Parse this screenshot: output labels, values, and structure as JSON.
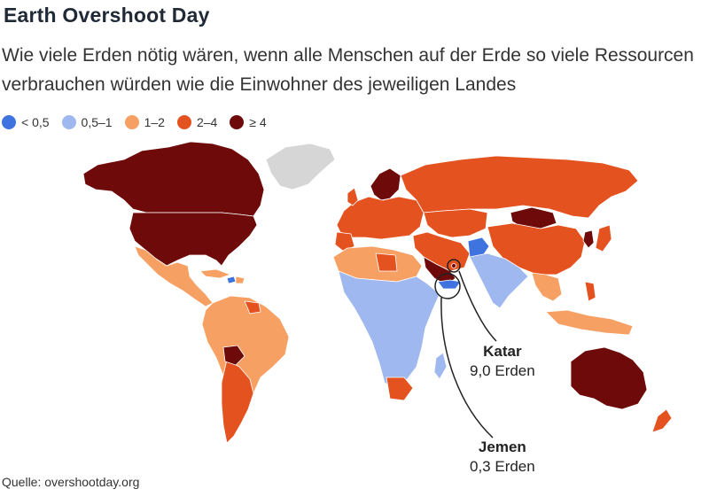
{
  "title": "Earth Overshoot Day",
  "subtitle": "Wie viele Erden nötig wären, wenn alle Menschen auf der Erde so viele Ressourcen verbrauchen würden wie die Einwohner des jeweiligen Landes",
  "legend": [
    {
      "label": "< 0,5",
      "color": "#3f74e0"
    },
    {
      "label": "0,5–1",
      "color": "#9fb8ef"
    },
    {
      "label": "1–2",
      "color": "#f7a063"
    },
    {
      "label": "2–4",
      "color": "#e45220"
    },
    {
      "label": "≥ 4",
      "color": "#6e0a0a"
    }
  ],
  "no_data_color": "#d6d6d6",
  "callouts": {
    "katar": {
      "name": "Katar",
      "value": "9,0 Erden"
    },
    "jemen": {
      "name": "Jemen",
      "value": "0,3 Erden"
    }
  },
  "source": "Quelle: overshootday.org"
}
